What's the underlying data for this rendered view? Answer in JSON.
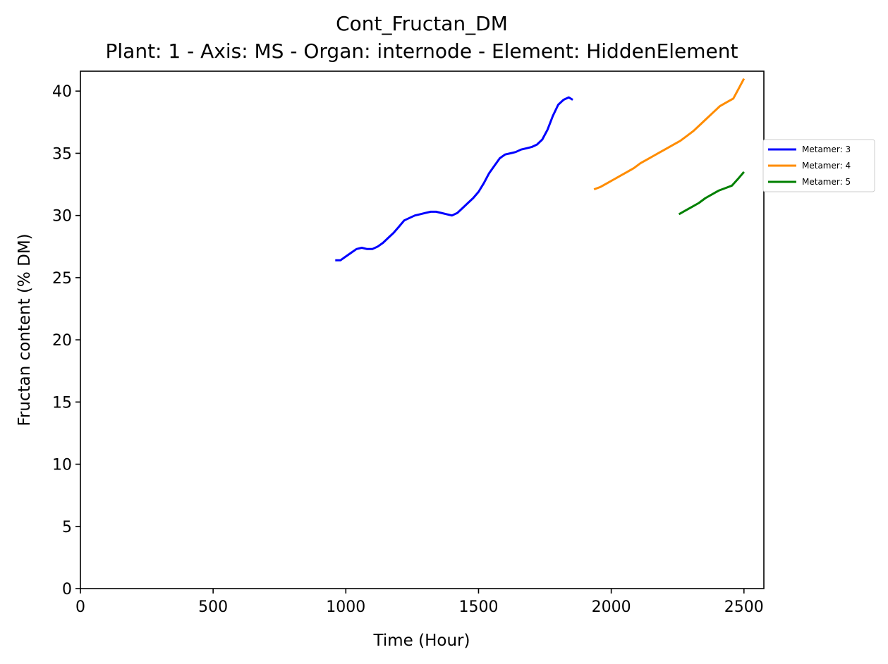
{
  "chart_data": {
    "type": "line",
    "title": "Cont_Fructan_DM",
    "subtitle": "Plant: 1 - Axis: MS - Organ: internode - Element: HiddenElement",
    "xlabel": "Time (Hour)",
    "ylabel": "Fructan content (% DM)",
    "xlim": [
      0,
      2575
    ],
    "ylim": [
      0,
      41.6
    ],
    "xticks": [
      0,
      500,
      1000,
      1500,
      2000,
      2500
    ],
    "yticks": [
      0,
      5,
      10,
      15,
      20,
      25,
      30,
      35,
      40
    ],
    "grid": false,
    "legend_position": "right-outside",
    "series": [
      {
        "name": "Metamer: 3",
        "color": "#0000ff",
        "x": [
          960,
          980,
          1000,
          1020,
          1040,
          1060,
          1080,
          1100,
          1120,
          1140,
          1160,
          1180,
          1200,
          1220,
          1240,
          1260,
          1280,
          1300,
          1320,
          1340,
          1360,
          1380,
          1400,
          1420,
          1440,
          1460,
          1480,
          1500,
          1520,
          1540,
          1560,
          1580,
          1600,
          1620,
          1640,
          1660,
          1680,
          1700,
          1720,
          1740,
          1760,
          1780,
          1800,
          1820,
          1840,
          1855
        ],
        "y": [
          26.4,
          26.4,
          26.7,
          27.0,
          27.3,
          27.4,
          27.3,
          27.3,
          27.5,
          27.8,
          28.2,
          28.6,
          29.1,
          29.6,
          29.8,
          30.0,
          30.1,
          30.2,
          30.3,
          30.3,
          30.2,
          30.1,
          30.0,
          30.2,
          30.6,
          31.0,
          31.4,
          31.9,
          32.6,
          33.4,
          34.0,
          34.6,
          34.9,
          35.0,
          35.1,
          35.3,
          35.4,
          35.5,
          35.7,
          36.1,
          36.9,
          38.0,
          38.9,
          39.3,
          39.5,
          39.3
        ]
      },
      {
        "name": "Metamer: 4",
        "color": "#ff8c00",
        "x": [
          1935,
          1960,
          1985,
          2010,
          2035,
          2060,
          2085,
          2110,
          2135,
          2160,
          2185,
          2210,
          2235,
          2260,
          2285,
          2310,
          2335,
          2360,
          2385,
          2410,
          2435,
          2460,
          2480,
          2500
        ],
        "y": [
          32.1,
          32.3,
          32.6,
          32.9,
          33.2,
          33.5,
          33.8,
          34.2,
          34.5,
          34.8,
          35.1,
          35.4,
          35.7,
          36.0,
          36.4,
          36.8,
          37.3,
          37.8,
          38.3,
          38.8,
          39.1,
          39.4,
          40.2,
          41.0
        ]
      },
      {
        "name": "Metamer: 5",
        "color": "#008000",
        "x": [
          2255,
          2280,
          2305,
          2330,
          2355,
          2380,
          2405,
          2430,
          2455,
          2480,
          2500
        ],
        "y": [
          30.1,
          30.4,
          30.7,
          31.0,
          31.4,
          31.7,
          32.0,
          32.2,
          32.4,
          33.0,
          33.5
        ]
      }
    ]
  }
}
